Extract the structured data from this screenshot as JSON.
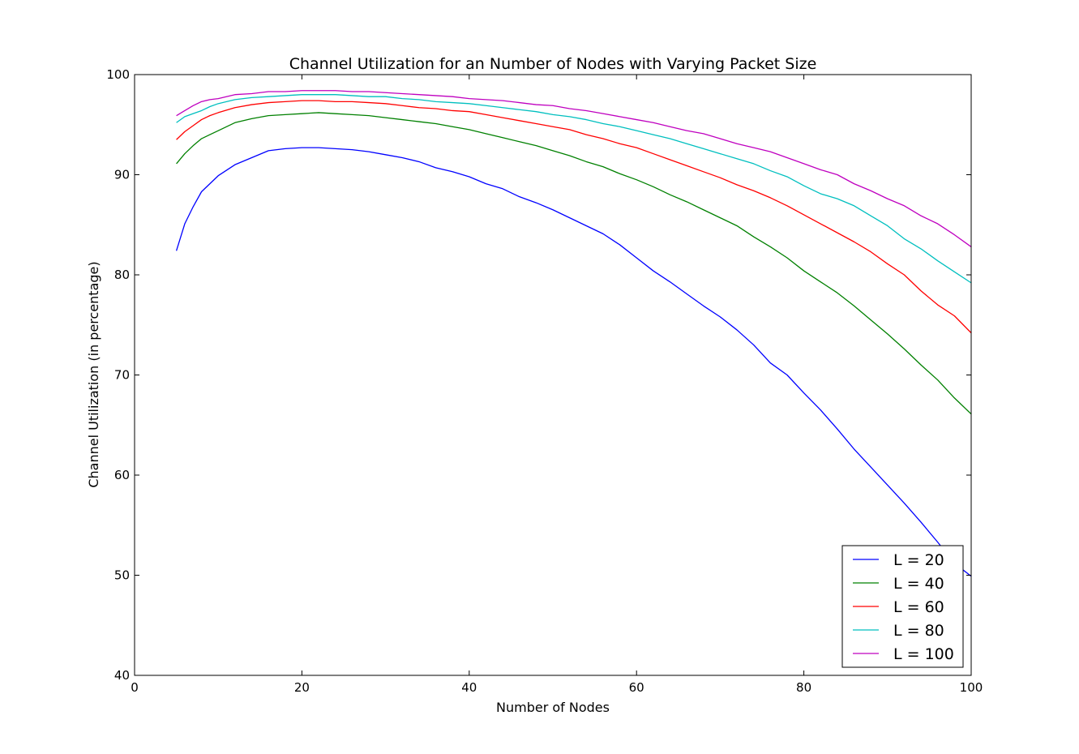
{
  "chart_data": {
    "type": "line",
    "title": "Channel Utilization for an Number of Nodes with Varying Packet Size",
    "xlabel": "Number of Nodes",
    "ylabel": "Channel Utilization (in percentage)",
    "xlim": [
      0,
      100
    ],
    "ylim": [
      40,
      100
    ],
    "xticks": [
      0,
      20,
      40,
      60,
      80,
      100
    ],
    "yticks": [
      40,
      50,
      60,
      70,
      80,
      90,
      100
    ],
    "grid": false,
    "legend_position": "bottom-right",
    "x": [
      5,
      6,
      7,
      8,
      9,
      10,
      12,
      14,
      16,
      18,
      20,
      22,
      24,
      26,
      28,
      30,
      32,
      34,
      36,
      38,
      40,
      42,
      44,
      46,
      48,
      50,
      52,
      54,
      56,
      58,
      60,
      62,
      64,
      66,
      68,
      70,
      72,
      74,
      76,
      78,
      80,
      82,
      84,
      86,
      88,
      90,
      92,
      94,
      96,
      98,
      100
    ],
    "series": [
      {
        "name": "L = 20",
        "color": "#0000ff",
        "values": [
          82.4,
          85.1,
          86.8,
          88.3,
          89.1,
          89.9,
          91.0,
          91.7,
          92.4,
          92.6,
          92.7,
          92.7,
          92.6,
          92.5,
          92.3,
          92.0,
          91.7,
          91.3,
          90.7,
          90.3,
          89.8,
          89.1,
          88.6,
          87.8,
          87.2,
          86.5,
          85.7,
          84.9,
          84.1,
          83.0,
          81.7,
          80.4,
          79.3,
          78.1,
          76.9,
          75.8,
          74.5,
          73.0,
          71.2,
          70.0,
          68.2,
          66.5,
          64.6,
          62.6,
          60.8,
          59.0,
          57.2,
          55.3,
          53.3,
          51.2,
          49.9
        ]
      },
      {
        "name": "L = 40",
        "color": "#008000",
        "values": [
          91.1,
          92.1,
          92.9,
          93.6,
          94.0,
          94.4,
          95.2,
          95.6,
          95.9,
          96.0,
          96.1,
          96.2,
          96.1,
          96.0,
          95.9,
          95.7,
          95.5,
          95.3,
          95.1,
          94.8,
          94.5,
          94.1,
          93.7,
          93.3,
          92.9,
          92.4,
          91.9,
          91.3,
          90.8,
          90.1,
          89.5,
          88.8,
          88.0,
          87.3,
          86.5,
          85.7,
          84.9,
          83.8,
          82.8,
          81.7,
          80.4,
          79.3,
          78.2,
          76.9,
          75.5,
          74.1,
          72.6,
          71.0,
          69.5,
          67.7,
          66.1
        ]
      },
      {
        "name": "L = 60",
        "color": "#ff0000",
        "values": [
          93.5,
          94.3,
          94.9,
          95.5,
          95.9,
          96.2,
          96.7,
          97.0,
          97.2,
          97.3,
          97.4,
          97.4,
          97.3,
          97.3,
          97.2,
          97.1,
          96.9,
          96.7,
          96.6,
          96.4,
          96.3,
          96.0,
          95.7,
          95.4,
          95.1,
          94.8,
          94.5,
          94.0,
          93.6,
          93.1,
          92.7,
          92.1,
          91.5,
          90.9,
          90.3,
          89.7,
          89.0,
          88.4,
          87.7,
          86.9,
          86.0,
          85.1,
          84.2,
          83.3,
          82.3,
          81.1,
          80.0,
          78.4,
          77.0,
          75.9,
          74.2
        ]
      },
      {
        "name": "L = 80",
        "color": "#00bfbf",
        "values": [
          95.2,
          95.8,
          96.1,
          96.4,
          96.8,
          97.1,
          97.5,
          97.7,
          97.8,
          97.9,
          98.0,
          98.0,
          98.0,
          97.9,
          97.8,
          97.8,
          97.6,
          97.5,
          97.3,
          97.2,
          97.1,
          96.9,
          96.7,
          96.5,
          96.3,
          96.0,
          95.8,
          95.5,
          95.1,
          94.8,
          94.4,
          94.0,
          93.6,
          93.1,
          92.6,
          92.1,
          91.6,
          91.1,
          90.4,
          89.8,
          88.9,
          88.1,
          87.6,
          86.9,
          85.9,
          84.9,
          83.6,
          82.6,
          81.4,
          80.3,
          79.2
        ]
      },
      {
        "name": "L = 100",
        "color": "#bf00bf",
        "values": [
          95.9,
          96.4,
          96.9,
          97.3,
          97.5,
          97.6,
          98.0,
          98.1,
          98.3,
          98.3,
          98.4,
          98.4,
          98.4,
          98.3,
          98.3,
          98.2,
          98.1,
          98.0,
          97.9,
          97.8,
          97.6,
          97.5,
          97.4,
          97.2,
          97.0,
          96.9,
          96.6,
          96.4,
          96.1,
          95.8,
          95.5,
          95.2,
          94.8,
          94.4,
          94.1,
          93.6,
          93.1,
          92.7,
          92.3,
          91.7,
          91.1,
          90.5,
          90.0,
          89.1,
          88.4,
          87.6,
          86.9,
          85.9,
          85.1,
          84.0,
          82.8
        ]
      }
    ]
  }
}
